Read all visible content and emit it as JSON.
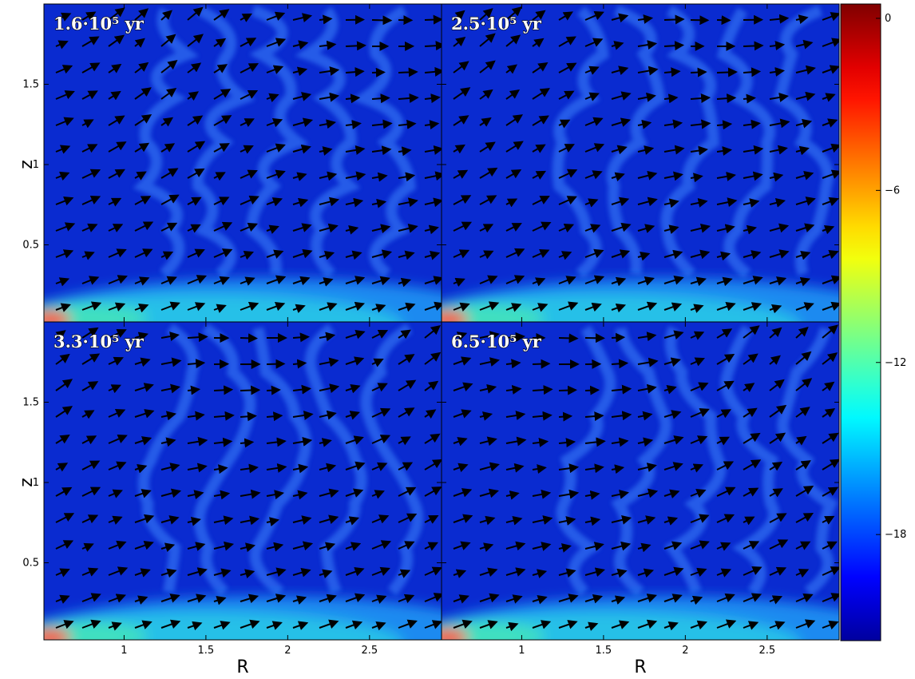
{
  "chart_data": {
    "type": "heatmap",
    "panels": [
      {
        "label": "1.6·10⁵ yr"
      },
      {
        "label": "2.5·10⁵ yr"
      },
      {
        "label": "3.3·10⁵ yr"
      },
      {
        "label": "6.5·10⁵ yr"
      }
    ],
    "xlabel": "R",
    "ylabel": "z",
    "xlim": [
      0.51,
      2.94
    ],
    "xticks": [
      1.0,
      1.5,
      2.0,
      2.5
    ],
    "ylim": [
      0.02,
      2.0
    ],
    "yticks": [
      0.5,
      1.0,
      1.5
    ],
    "colorbar": {
      "clim": [
        -21.7,
        0.5
      ],
      "ticks": [
        0,
        {
          "value": -6,
          "label": "−6"
        },
        {
          "value": -12,
          "label": "−12"
        },
        {
          "value": -18,
          "label": "−18"
        }
      ]
    }
  }
}
